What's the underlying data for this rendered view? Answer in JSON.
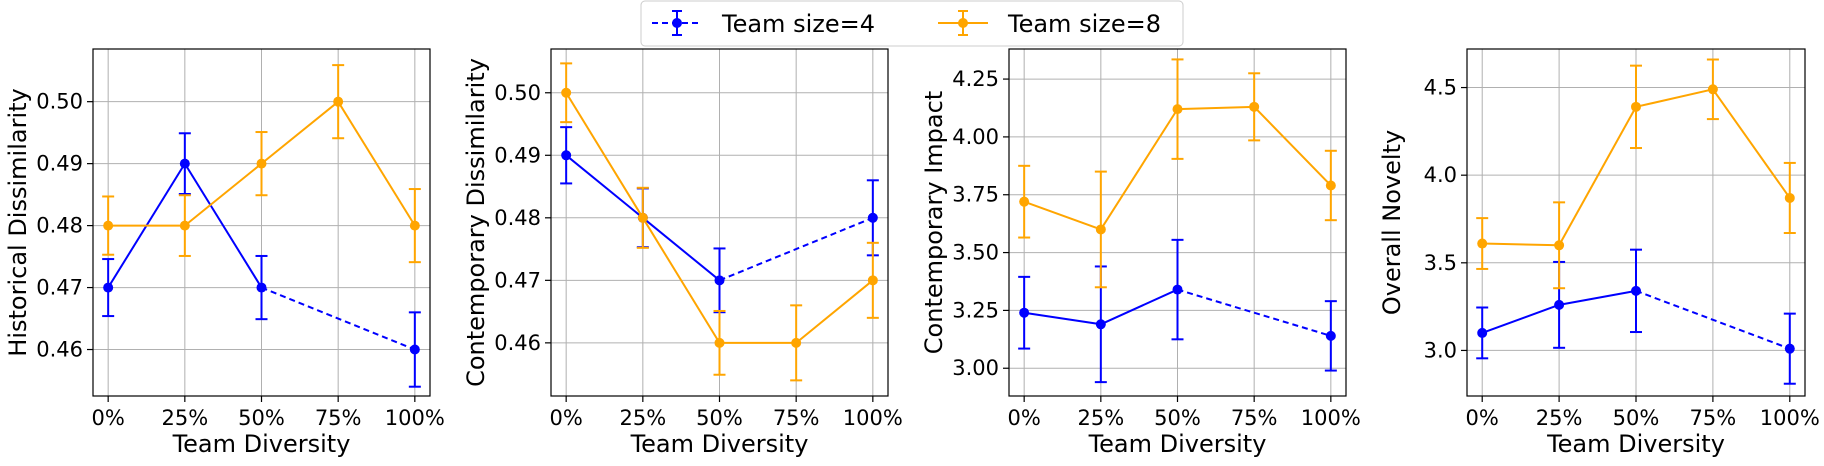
{
  "legend": {
    "entries": [
      {
        "label": "Team size=4",
        "color": "#0000ff",
        "dashed_segment": true
      },
      {
        "label": "Team size=8",
        "color": "#ffa500"
      }
    ]
  },
  "chart_data": [
    {
      "type": "line",
      "xlabel": "Team Diversity",
      "ylabel": "Historical Dissimilarity",
      "categories": [
        "0%",
        "25%",
        "50%",
        "75%",
        "100%"
      ],
      "ylim": [
        0.4525,
        0.5085
      ],
      "yticks": [
        0.46,
        0.47,
        0.48,
        0.49,
        0.5
      ],
      "yticklabels": [
        "0.46",
        "0.47",
        "0.48",
        "0.49",
        "0.50"
      ],
      "grid": true,
      "series": [
        {
          "name": "Team size=4",
          "color": "#0000ff",
          "x": [
            0,
            1,
            2,
            4
          ],
          "y": [
            0.47,
            0.49,
            0.47,
            0.46
          ],
          "err": [
            0.0046,
            0.0049,
            0.0051,
            0.006
          ],
          "dashed_from": 2
        },
        {
          "name": "Team size=8",
          "color": "#ffa500",
          "x": [
            0,
            1,
            2,
            3,
            4
          ],
          "y": [
            0.48,
            0.48,
            0.49,
            0.5,
            0.48
          ],
          "err": [
            0.0047,
            0.0049,
            0.0051,
            0.0059,
            0.0059
          ]
        }
      ]
    },
    {
      "type": "line",
      "xlabel": "Team Diversity",
      "ylabel": "Contemporary Dissimilarity",
      "categories": [
        "0%",
        "25%",
        "50%",
        "75%",
        "100%"
      ],
      "ylim": [
        0.4515,
        0.507
      ],
      "yticks": [
        0.46,
        0.47,
        0.48,
        0.49,
        0.5
      ],
      "yticklabels": [
        "0.46",
        "0.47",
        "0.48",
        "0.49",
        "0.50"
      ],
      "grid": true,
      "series": [
        {
          "name": "Team size=4",
          "color": "#0000ff",
          "x": [
            0,
            1,
            2,
            4
          ],
          "y": [
            0.49,
            0.48,
            0.47,
            0.48
          ],
          "err": [
            0.0045,
            0.0047,
            0.0051,
            0.006
          ],
          "dashed_from": 2
        },
        {
          "name": "Team size=8",
          "color": "#ffa500",
          "x": [
            0,
            1,
            2,
            3,
            4
          ],
          "y": [
            0.5,
            0.48,
            0.46,
            0.46,
            0.47
          ],
          "err": [
            0.0047,
            0.0048,
            0.0051,
            0.006,
            0.006
          ]
        }
      ]
    },
    {
      "type": "line",
      "xlabel": "Team Diversity",
      "ylabel": "Contemporary Impact",
      "categories": [
        "0%",
        "25%",
        "50%",
        "75%",
        "100%"
      ],
      "ylim": [
        2.88,
        4.38
      ],
      "yticks": [
        3.0,
        3.25,
        3.5,
        3.75,
        4.0,
        4.25
      ],
      "yticklabels": [
        "3.00",
        "3.25",
        "3.50",
        "3.75",
        "4.00",
        "4.25"
      ],
      "grid": true,
      "series": [
        {
          "name": "Team size=4",
          "color": "#0000ff",
          "x": [
            0,
            1,
            2,
            4
          ],
          "y": [
            3.24,
            3.19,
            3.34,
            3.14
          ],
          "err": [
            0.155,
            0.25,
            0.215,
            0.15
          ],
          "dashed_from": 2
        },
        {
          "name": "Team size=8",
          "color": "#ffa500",
          "x": [
            0,
            1,
            2,
            3,
            4
          ],
          "y": [
            3.72,
            3.6,
            4.12,
            4.13,
            3.79
          ],
          "err": [
            0.155,
            0.25,
            0.215,
            0.145,
            0.15
          ]
        }
      ]
    },
    {
      "type": "line",
      "xlabel": "Team Diversity",
      "ylabel": "Overall Novelty",
      "categories": [
        "0%",
        "25%",
        "50%",
        "75%",
        "100%"
      ],
      "ylim": [
        2.74,
        4.72
      ],
      "yticks": [
        3.0,
        3.5,
        4.0,
        4.5
      ],
      "yticklabels": [
        "3.0",
        "3.5",
        "4.0",
        "4.5"
      ],
      "grid": true,
      "series": [
        {
          "name": "Team size=4",
          "color": "#0000ff",
          "x": [
            0,
            1,
            2,
            4
          ],
          "y": [
            3.1,
            3.26,
            3.34,
            3.01
          ],
          "err": [
            0.145,
            0.245,
            0.235,
            0.2
          ],
          "dashed_from": 2
        },
        {
          "name": "Team size=8",
          "color": "#ffa500",
          "x": [
            0,
            1,
            2,
            3,
            4
          ],
          "y": [
            3.61,
            3.6,
            4.39,
            4.49,
            3.87
          ],
          "err": [
            0.145,
            0.245,
            0.235,
            0.17,
            0.2
          ]
        }
      ]
    }
  ]
}
